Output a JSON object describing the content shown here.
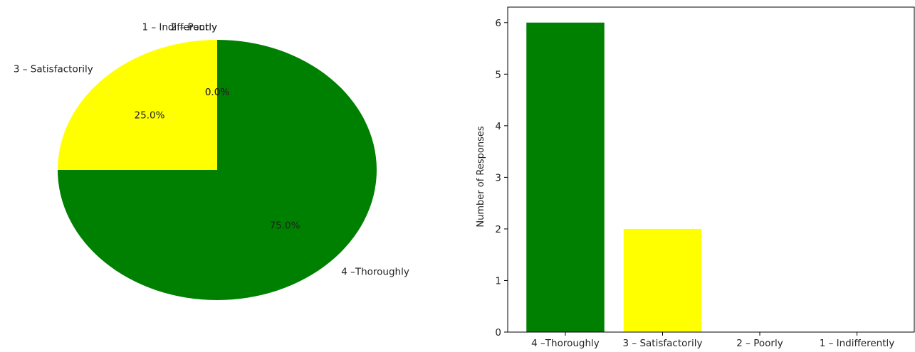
{
  "chart_data": [
    {
      "type": "pie",
      "categories": [
        "4 –Thoroughly",
        "3 – Satisfactorily",
        "2 – Poorly",
        "1 – Indifferently"
      ],
      "values": [
        6,
        2,
        0,
        0
      ],
      "percent_labels": [
        "75.0%",
        "25.0%",
        "0.0%",
        "0.0%"
      ],
      "colors": [
        "#008000",
        "#ffff00",
        "#ff0000",
        "#0000ff"
      ],
      "start_angle_deg": 90,
      "direction": "clockwise"
    },
    {
      "type": "bar",
      "categories": [
        "4 –Thoroughly",
        "3 – Satisfactorily",
        "2 – Poorly",
        "1 – Indifferently"
      ],
      "values": [
        6,
        2,
        0,
        0
      ],
      "colors": [
        "#008000",
        "#ffff00",
        "#ff0000",
        "#0000ff"
      ],
      "xlabel": "",
      "ylabel": "Number of Responses",
      "ylim": [
        0,
        6.3
      ],
      "yticks": [
        0,
        1,
        2,
        3,
        4,
        5,
        6
      ],
      "grid": false
    }
  ]
}
